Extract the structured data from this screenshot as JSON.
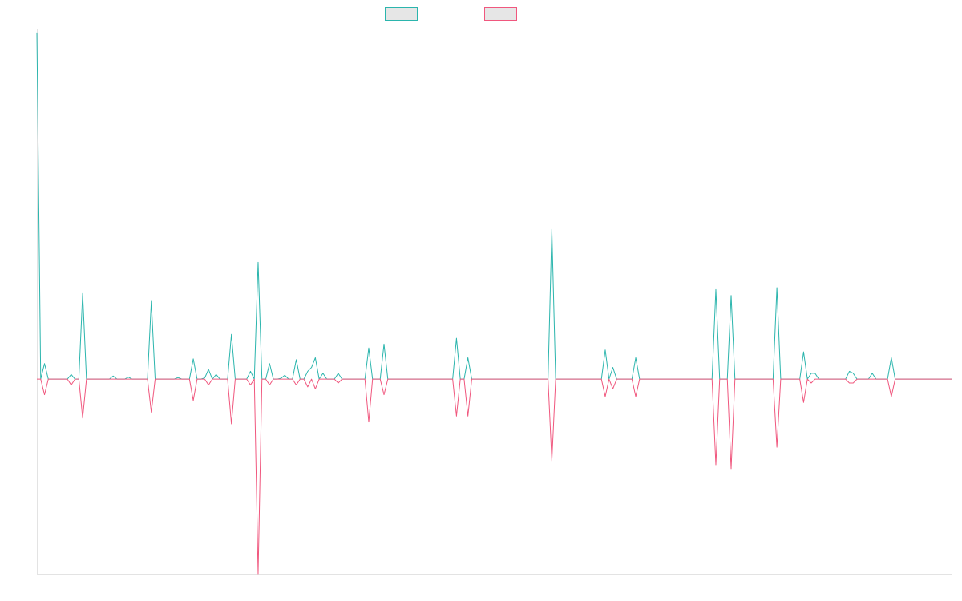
{
  "chart_data": {
    "type": "line",
    "title": "",
    "xlabel": "",
    "ylabel": "",
    "ylim": [
      -50,
      90
    ],
    "n_points": 241,
    "grid": false,
    "legend_position": "top-center",
    "legend_shows_text": false,
    "series": [
      {
        "key": "positive",
        "color": "#2bb5ad",
        "fill": "#e6e6e6",
        "points": [
          [
            0,
            89
          ],
          [
            2,
            4
          ],
          [
            9,
            1.2
          ],
          [
            12,
            22
          ],
          [
            20,
            0.8
          ],
          [
            24,
            0.5
          ],
          [
            30,
            20
          ],
          [
            37,
            0.4
          ],
          [
            41,
            5.2
          ],
          [
            44,
            0.3
          ],
          [
            45,
            2.5
          ],
          [
            47,
            1.2
          ],
          [
            51,
            11.5
          ],
          [
            56,
            2
          ],
          [
            58,
            30
          ],
          [
            61,
            4
          ],
          [
            64,
            0.2
          ],
          [
            65,
            1
          ],
          [
            68,
            5
          ],
          [
            71,
            2
          ],
          [
            72,
            3
          ],
          [
            73,
            5.5
          ],
          [
            75,
            1.5
          ],
          [
            79,
            1.5
          ],
          [
            87,
            8
          ],
          [
            91,
            9
          ],
          [
            110,
            10.5
          ],
          [
            113,
            5.5
          ],
          [
            135,
            38.5
          ],
          [
            149,
            7.5
          ],
          [
            151,
            3
          ],
          [
            157,
            5.5
          ],
          [
            178,
            23
          ],
          [
            182,
            21.5
          ],
          [
            194,
            23.5
          ],
          [
            201,
            7
          ],
          [
            203,
            1.5
          ],
          [
            204,
            1.5
          ],
          [
            213,
            2
          ],
          [
            214,
            1.5
          ],
          [
            219,
            1.5
          ],
          [
            224,
            5.5
          ],
          [
            241,
            16
          ]
        ]
      },
      {
        "key": "negative",
        "color": "#f0577e",
        "fill": "#e6e6e6",
        "points": [
          [
            2,
            -4
          ],
          [
            9,
            -1.5
          ],
          [
            12,
            -10
          ],
          [
            30,
            -8.5
          ],
          [
            41,
            -5.5
          ],
          [
            45,
            -1.5
          ],
          [
            51,
            -11.5
          ],
          [
            56,
            -1.5
          ],
          [
            58,
            -50
          ],
          [
            61,
            -1.5
          ],
          [
            68,
            -1.5
          ],
          [
            71,
            -2
          ],
          [
            73,
            -2.5
          ],
          [
            79,
            -1
          ],
          [
            87,
            -11
          ],
          [
            91,
            -4
          ],
          [
            110,
            -9.5
          ],
          [
            113,
            -9.5
          ],
          [
            135,
            -21
          ],
          [
            149,
            -4.5
          ],
          [
            151,
            -2.5
          ],
          [
            157,
            -4.5
          ],
          [
            178,
            -22
          ],
          [
            182,
            -23
          ],
          [
            194,
            -17.5
          ],
          [
            201,
            -6
          ],
          [
            203,
            -1
          ],
          [
            213,
            -1
          ],
          [
            214,
            -1
          ],
          [
            224,
            -4.5
          ],
          [
            241,
            -2.5
          ]
        ]
      }
    ]
  }
}
